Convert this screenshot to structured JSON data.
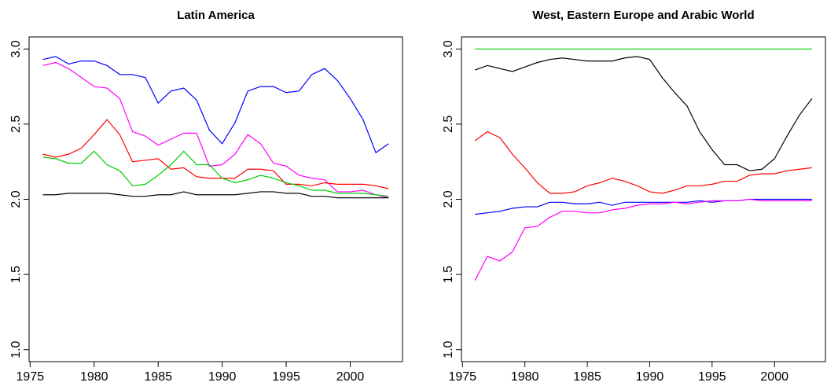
{
  "chart_data": [
    {
      "type": "line",
      "title": "Latin America",
      "x": [
        1976,
        1977,
        1978,
        1979,
        1980,
        1981,
        1982,
        1983,
        1984,
        1985,
        1986,
        1987,
        1988,
        1989,
        1990,
        1991,
        1992,
        1993,
        1994,
        1995,
        1996,
        1997,
        1998,
        1999,
        2000,
        2001,
        2002,
        2003
      ],
      "xlim": [
        1974.92,
        2004.08
      ],
      "xticks": [
        1975,
        1980,
        1985,
        1990,
        1995,
        2000
      ],
      "ylim": [
        0.92,
        3.08
      ],
      "yticks": [
        {
          "value": 1,
          "label": "1.0"
        },
        {
          "value": 1.5,
          "label": "1.5"
        },
        {
          "value": 2,
          "label": "2.0"
        },
        {
          "value": 2.5,
          "label": "2.5"
        },
        {
          "value": 3,
          "label": "3.0"
        }
      ],
      "series": [
        {
          "color": "#0000ff",
          "values": [
            2.93,
            2.95,
            2.9,
            2.92,
            2.92,
            2.89,
            2.83,
            2.83,
            2.81,
            2.64,
            2.72,
            2.74,
            2.66,
            2.46,
            2.37,
            2.51,
            2.72,
            2.75,
            2.75,
            2.71,
            2.72,
            2.83,
            2.87,
            2.79,
            2.67,
            2.53,
            2.31,
            2.37
          ]
        },
        {
          "color": "#ff00ff",
          "values": [
            2.89,
            2.91,
            2.87,
            2.81,
            2.75,
            2.74,
            2.67,
            2.45,
            2.42,
            2.36,
            2.4,
            2.44,
            2.44,
            2.22,
            2.23,
            2.3,
            2.43,
            2.37,
            2.24,
            2.22,
            2.16,
            2.14,
            2.13,
            2.05,
            2.05,
            2.06,
            2.03,
            2.01
          ]
        },
        {
          "color": "#ff0000",
          "values": [
            2.3,
            2.28,
            2.3,
            2.34,
            2.43,
            2.53,
            2.43,
            2.25,
            2.26,
            2.27,
            2.2,
            2.21,
            2.15,
            2.14,
            2.14,
            2.14,
            2.2,
            2.2,
            2.19,
            2.1,
            2.1,
            2.09,
            2.11,
            2.1,
            2.1,
            2.1,
            2.09,
            2.07
          ]
        },
        {
          "color": "#00cd00",
          "values": [
            2.28,
            2.27,
            2.24,
            2.24,
            2.32,
            2.23,
            2.19,
            2.09,
            2.1,
            2.16,
            2.23,
            2.32,
            2.23,
            2.23,
            2.14,
            2.11,
            2.13,
            2.16,
            2.14,
            2.11,
            2.09,
            2.06,
            2.06,
            2.04,
            2.04,
            2.04,
            2.03,
            2.02
          ]
        },
        {
          "color": "#000000",
          "values": [
            2.03,
            2.03,
            2.04,
            2.04,
            2.04,
            2.04,
            2.03,
            2.02,
            2.02,
            2.03,
            2.03,
            2.05,
            2.03,
            2.03,
            2.03,
            2.03,
            2.04,
            2.05,
            2.05,
            2.04,
            2.04,
            2.02,
            2.02,
            2.01,
            2.01,
            2.01,
            2.01,
            2.01
          ]
        }
      ]
    },
    {
      "type": "line",
      "title": "West, Eastern Europe and Arabic World",
      "x": [
        1976,
        1977,
        1978,
        1979,
        1980,
        1981,
        1982,
        1983,
        1984,
        1985,
        1986,
        1987,
        1988,
        1989,
        1990,
        1991,
        1992,
        1993,
        1994,
        1995,
        1996,
        1997,
        1998,
        1999,
        2000,
        2001,
        2002,
        2003
      ],
      "xlim": [
        1974.92,
        2004.08
      ],
      "xticks": [
        1975,
        1980,
        1985,
        1990,
        1995,
        2000
      ],
      "ylim": [
        0.92,
        3.08
      ],
      "yticks": [
        {
          "value": 1,
          "label": "1.0"
        },
        {
          "value": 1.5,
          "label": "1.5"
        },
        {
          "value": 2,
          "label": "2.0"
        },
        {
          "value": 2.5,
          "label": "2.5"
        },
        {
          "value": 3,
          "label": "3.0"
        }
      ],
      "series": [
        {
          "color": "#00cd00",
          "values": [
            3,
            3,
            3,
            3,
            3,
            3,
            3,
            3,
            3,
            3,
            3,
            3,
            3,
            3,
            3,
            3,
            3,
            3,
            3,
            3,
            3,
            3,
            3,
            3,
            3,
            3,
            3,
            3
          ]
        },
        {
          "color": "#000000",
          "values": [
            2.86,
            2.89,
            2.87,
            2.85,
            2.88,
            2.91,
            2.93,
            2.94,
            2.93,
            2.92,
            2.92,
            2.92,
            2.94,
            2.95,
            2.93,
            2.81,
            2.71,
            2.62,
            2.45,
            2.33,
            2.23,
            2.23,
            2.19,
            2.2,
            2.27,
            2.42,
            2.56,
            2.67
          ]
        },
        {
          "color": "#ff0000",
          "values": [
            2.39,
            2.45,
            2.41,
            2.3,
            2.21,
            2.11,
            2.04,
            2.04,
            2.05,
            2.09,
            2.11,
            2.14,
            2.12,
            2.09,
            2.05,
            2.04,
            2.06,
            2.09,
            2.09,
            2.1,
            2.12,
            2.12,
            2.16,
            2.17,
            2.17,
            2.19,
            2.2,
            2.21
          ]
        },
        {
          "color": "#0000ff",
          "values": [
            1.9,
            1.91,
            1.92,
            1.94,
            1.95,
            1.95,
            1.98,
            1.98,
            1.97,
            1.97,
            1.98,
            1.96,
            1.98,
            1.98,
            1.98,
            1.98,
            1.98,
            1.98,
            1.99,
            1.98,
            1.99,
            1.99,
            2.0,
            2.0,
            2.0,
            2.0,
            2.0,
            2.0
          ]
        },
        {
          "color": "#ff00ff",
          "values": [
            1.46,
            1.62,
            1.59,
            1.65,
            1.81,
            1.82,
            1.88,
            1.92,
            1.92,
            1.91,
            1.91,
            1.93,
            1.94,
            1.96,
            1.97,
            1.97,
            1.98,
            1.97,
            1.98,
            1.99,
            1.99,
            1.99,
            2.0,
            1.99,
            1.99,
            1.99,
            1.99,
            1.99
          ]
        }
      ]
    }
  ]
}
